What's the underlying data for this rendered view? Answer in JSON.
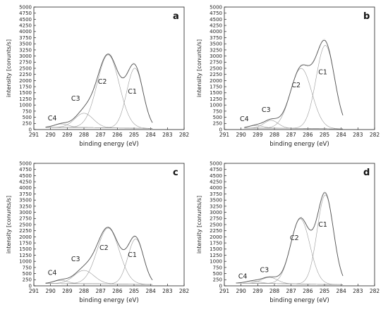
{
  "chart_data": [
    {
      "type": "line",
      "panel_label": "a",
      "xlabel": "binding energy (eV)",
      "ylabel": "intensity [conunts/s]",
      "xlim": [
        291,
        282
      ],
      "ylim": [
        0,
        5000
      ],
      "x_ticks": [
        "291",
        "290",
        "289",
        "288",
        "287",
        "286",
        "285",
        "284",
        "283",
        "282"
      ],
      "y_ticks": [
        "0",
        "250",
        "500",
        "750",
        "1000",
        "1250",
        "1500",
        "1750",
        "2000",
        "2250",
        "2500",
        "2750",
        "3000",
        "3250",
        "3500",
        "3750",
        "4000",
        "4250",
        "4500",
        "4750",
        "5000"
      ],
      "background": [
        {
          "x": 290.3,
          "y": 90
        },
        {
          "x": 288,
          "y": 85
        },
        {
          "x": 286,
          "y": 65
        },
        {
          "x": 284,
          "y": 45
        },
        {
          "x": 283.9,
          "y": 40
        }
      ],
      "peaks": [
        {
          "name": "C1",
          "center": 284.95,
          "height": 2450,
          "fwhm": 1.15,
          "label_x": 285.1,
          "label_y": 1460
        },
        {
          "name": "C2",
          "center": 286.55,
          "height": 2980,
          "fwhm": 1.55,
          "label_x": 286.9,
          "label_y": 1870
        },
        {
          "name": "C3",
          "center": 288.0,
          "height": 580,
          "fwhm": 1.3,
          "label_x": 288.5,
          "label_y": 1180
        },
        {
          "name": "C4",
          "center": 289.35,
          "height": 140,
          "fwhm": 1.0,
          "label_x": 289.9,
          "label_y": 370
        }
      ]
    },
    {
      "type": "line",
      "panel_label": "b",
      "xlabel": "binding energy (eV)",
      "ylabel": "intensity [conunts/s]",
      "xlim": [
        291,
        282
      ],
      "ylim": [
        0,
        5000
      ],
      "x_ticks": [
        "291",
        "290",
        "289",
        "288",
        "287",
        "286",
        "285",
        "284",
        "283",
        "282"
      ],
      "y_ticks": [
        "0",
        "250",
        "500",
        "750",
        "1000",
        "1250",
        "1500",
        "1750",
        "2000",
        "2250",
        "2500",
        "2750",
        "3000",
        "3250",
        "3500",
        "3750",
        "4000",
        "4250",
        "4500",
        "4750",
        "5000"
      ],
      "background": [
        {
          "x": 289.8,
          "y": 60
        },
        {
          "x": 288,
          "y": 55
        },
        {
          "x": 286,
          "y": 45
        },
        {
          "x": 284,
          "y": 30
        },
        {
          "x": 283.9,
          "y": 25
        }
      ],
      "peaks": [
        {
          "name": "C1",
          "center": 284.95,
          "height": 3400,
          "fwhm": 1.3,
          "label_x": 285.1,
          "label_y": 2260
        },
        {
          "name": "C2",
          "center": 286.4,
          "height": 2450,
          "fwhm": 1.5,
          "label_x": 286.7,
          "label_y": 1720
        },
        {
          "name": "C3",
          "center": 288.2,
          "height": 320,
          "fwhm": 1.0,
          "label_x": 288.5,
          "label_y": 720
        },
        {
          "name": "C4",
          "center": 289.1,
          "height": 110,
          "fwhm": 1.0,
          "label_x": 289.8,
          "label_y": 350
        }
      ]
    },
    {
      "type": "line",
      "panel_label": "c",
      "xlabel": "binding energy (eV)",
      "ylabel": "intensity [conunts/s]",
      "xlim": [
        291,
        282
      ],
      "ylim": [
        0,
        5000
      ],
      "x_ticks": [
        "291",
        "290",
        "289",
        "288",
        "287",
        "286",
        "285",
        "284",
        "283",
        "282"
      ],
      "y_ticks": [
        "0",
        "250",
        "500",
        "750",
        "1000",
        "1250",
        "1500",
        "1750",
        "2000",
        "2250",
        "2500",
        "2750",
        "3000",
        "3250",
        "3500",
        "3750",
        "4000",
        "4250",
        "4500",
        "4750",
        "5000"
      ],
      "background": [
        {
          "x": 290.3,
          "y": 95
        },
        {
          "x": 288,
          "y": 90
        },
        {
          "x": 286,
          "y": 75
        },
        {
          "x": 284,
          "y": 55
        },
        {
          "x": 283.9,
          "y": 50
        }
      ],
      "peaks": [
        {
          "name": "C1",
          "center": 284.9,
          "height": 1850,
          "fwhm": 1.1,
          "label_x": 285.1,
          "label_y": 1180
        },
        {
          "name": "C2",
          "center": 286.55,
          "height": 2280,
          "fwhm": 1.55,
          "label_x": 286.8,
          "label_y": 1470
        },
        {
          "name": "C3",
          "center": 288.0,
          "height": 540,
          "fwhm": 1.4,
          "label_x": 288.5,
          "label_y": 1000
        },
        {
          "name": "C4",
          "center": 289.4,
          "height": 130,
          "fwhm": 1.0,
          "label_x": 289.9,
          "label_y": 450
        }
      ]
    },
    {
      "type": "line",
      "panel_label": "d",
      "xlabel": "binding energy (eV)",
      "ylabel": "intensity [conunts/s]",
      "xlim": [
        291,
        282
      ],
      "ylim": [
        0,
        5000
      ],
      "x_ticks": [
        "291",
        "290",
        "289",
        "288",
        "287",
        "286",
        "285",
        "284",
        "283",
        "282"
      ],
      "y_ticks": [
        "0",
        "250",
        "500",
        "750",
        "1000",
        "1250",
        "1500",
        "1750",
        "2000",
        "2250",
        "2500",
        "2750",
        "3000",
        "3250",
        "3500",
        "3750",
        "4000",
        "4250",
        "4500",
        "4750",
        "5000"
      ],
      "background": [
        {
          "x": 290.3,
          "y": 110
        },
        {
          "x": 288,
          "y": 95
        },
        {
          "x": 286,
          "y": 70
        },
        {
          "x": 284,
          "y": 50
        },
        {
          "x": 283.9,
          "y": 45
        }
      ],
      "peaks": [
        {
          "name": "C1",
          "center": 284.95,
          "height": 3650,
          "fwhm": 1.15,
          "label_x": 285.1,
          "label_y": 2420
        },
        {
          "name": "C2",
          "center": 286.45,
          "height": 2660,
          "fwhm": 1.35,
          "label_x": 286.8,
          "label_y": 1870
        },
        {
          "name": "C3",
          "center": 288.3,
          "height": 250,
          "fwhm": 1.1,
          "label_x": 288.6,
          "label_y": 560
        },
        {
          "name": "C4",
          "center": 289.3,
          "height": 90,
          "fwhm": 1.0,
          "label_x": 289.9,
          "label_y": 300
        }
      ]
    }
  ]
}
